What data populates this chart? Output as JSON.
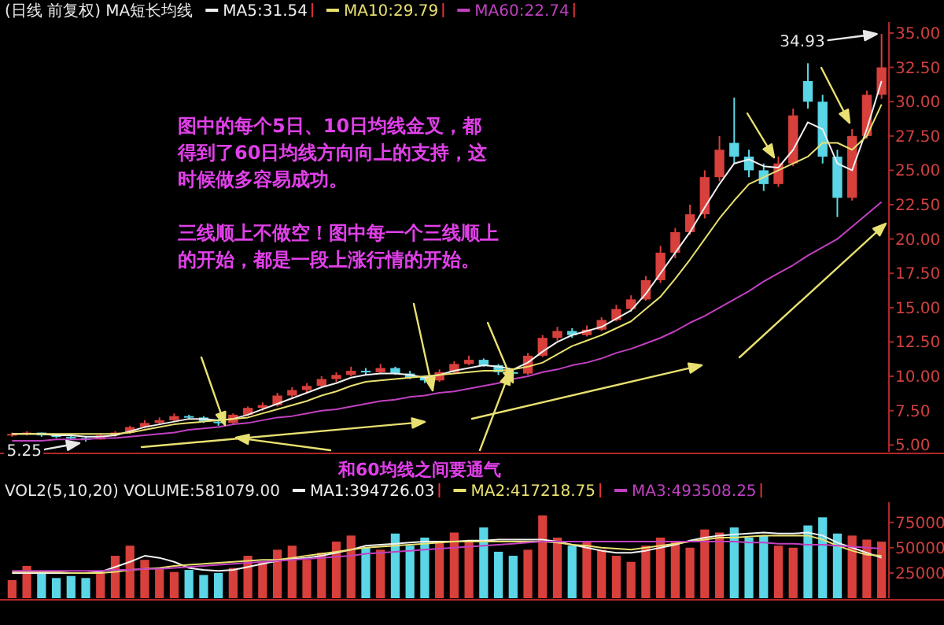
{
  "chart_data": [
    {
      "type": "candlestick",
      "title": "(日线 前复权) MA短长均线",
      "categories": [
        null,
        null,
        null,
        null,
        null,
        null,
        null,
        null,
        null,
        null,
        null,
        null,
        null,
        null,
        null,
        null,
        null,
        null,
        null,
        null,
        null,
        null,
        null,
        null,
        null,
        null,
        null,
        null,
        null,
        null,
        null,
        null,
        null,
        null,
        null,
        null,
        null,
        null,
        null,
        null,
        null,
        null,
        null,
        null,
        null,
        null,
        null,
        null,
        null,
        null,
        null,
        null,
        null,
        null,
        null,
        null,
        null,
        null,
        null,
        null
      ],
      "ohlc": [
        [
          5.7,
          5.9,
          5.6,
          5.8
        ],
        [
          5.8,
          6.0,
          5.7,
          5.9
        ],
        [
          5.9,
          5.9,
          5.6,
          5.7
        ],
        [
          5.7,
          5.8,
          5.5,
          5.6
        ],
        [
          5.6,
          5.7,
          5.4,
          5.5
        ],
        [
          5.5,
          5.6,
          5.25,
          5.4
        ],
        [
          5.4,
          5.8,
          5.4,
          5.7
        ],
        [
          5.7,
          6.0,
          5.6,
          5.9
        ],
        [
          5.9,
          6.4,
          5.8,
          6.3
        ],
        [
          6.3,
          6.8,
          6.2,
          6.6
        ],
        [
          6.6,
          7.0,
          6.5,
          6.8
        ],
        [
          6.8,
          7.3,
          6.7,
          7.1
        ],
        [
          7.1,
          7.2,
          6.9,
          7.0
        ],
        [
          7.0,
          7.1,
          6.6,
          6.7
        ],
        [
          6.7,
          6.9,
          6.4,
          6.6
        ],
        [
          6.6,
          7.3,
          6.5,
          7.2
        ],
        [
          7.2,
          7.8,
          7.1,
          7.7
        ],
        [
          7.7,
          8.1,
          7.5,
          7.9
        ],
        [
          7.9,
          8.8,
          7.8,
          8.6
        ],
        [
          8.6,
          9.2,
          8.4,
          9.0
        ],
        [
          9.0,
          9.5,
          8.8,
          9.3
        ],
        [
          9.3,
          10.0,
          9.2,
          9.8
        ],
        [
          9.8,
          10.3,
          9.6,
          10.1
        ],
        [
          10.1,
          10.7,
          10.0,
          10.4
        ],
        [
          10.4,
          10.6,
          10.1,
          10.3
        ],
        [
          10.3,
          10.9,
          10.2,
          10.6
        ],
        [
          10.6,
          10.7,
          10.1,
          10.2
        ],
        [
          10.2,
          10.4,
          9.8,
          9.9
        ],
        [
          9.9,
          10.0,
          9.5,
          9.7
        ],
        [
          9.7,
          10.5,
          9.6,
          10.3
        ],
        [
          10.3,
          11.1,
          10.2,
          10.9
        ],
        [
          10.9,
          11.5,
          10.8,
          11.2
        ],
        [
          11.2,
          11.3,
          10.7,
          10.8
        ],
        [
          10.8,
          10.9,
          10.1,
          10.3
        ],
        [
          10.3,
          10.5,
          10.0,
          10.2
        ],
        [
          10.2,
          11.7,
          10.1,
          11.5
        ],
        [
          11.5,
          13.0,
          11.4,
          12.8
        ],
        [
          12.8,
          13.6,
          12.6,
          13.3
        ],
        [
          13.3,
          13.5,
          12.8,
          13.0
        ],
        [
          13.0,
          13.7,
          12.9,
          13.4
        ],
        [
          13.4,
          14.3,
          13.3,
          14.1
        ],
        [
          14.1,
          15.2,
          14.0,
          14.9
        ],
        [
          14.9,
          15.9,
          14.7,
          15.6
        ],
        [
          15.6,
          17.3,
          15.5,
          17.0
        ],
        [
          17.0,
          19.5,
          16.8,
          19.0
        ],
        [
          19.0,
          20.8,
          18.6,
          20.5
        ],
        [
          20.5,
          22.5,
          20.3,
          21.8
        ],
        [
          21.8,
          25.0,
          21.5,
          24.5
        ],
        [
          24.5,
          27.5,
          24.2,
          26.5
        ],
        [
          27.0,
          30.3,
          25.5,
          26.0
        ],
        [
          26.0,
          26.5,
          24.5,
          25.0
        ],
        [
          25.0,
          25.5,
          23.5,
          24.0
        ],
        [
          24.0,
          26.0,
          23.8,
          25.5
        ],
        [
          25.5,
          29.5,
          25.3,
          29.0
        ],
        [
          31.5,
          32.8,
          29.5,
          30.0
        ],
        [
          30.0,
          30.5,
          25.5,
          26.0
        ],
        [
          26.0,
          26.5,
          21.6,
          23.0
        ],
        [
          23.0,
          28.0,
          22.8,
          27.5
        ],
        [
          27.5,
          30.8,
          27.3,
          30.5
        ],
        [
          30.5,
          34.93,
          30.2,
          32.5
        ]
      ],
      "colors": [
        "#d8403c",
        "#d8403c",
        "#5ad6e6",
        "#5ad6e6",
        "#5ad6e6",
        "#5ad6e6",
        "#d8403c",
        "#d8403c",
        "#d8403c",
        "#d8403c",
        "#d8403c",
        "#d8403c",
        "#5ad6e6",
        "#5ad6e6",
        "#5ad6e6",
        "#d8403c",
        "#d8403c",
        "#d8403c",
        "#d8403c",
        "#d8403c",
        "#d8403c",
        "#d8403c",
        "#d8403c",
        "#d8403c",
        "#5ad6e6",
        "#d8403c",
        "#5ad6e6",
        "#5ad6e6",
        "#5ad6e6",
        "#d8403c",
        "#d8403c",
        "#d8403c",
        "#5ad6e6",
        "#5ad6e6",
        "#5ad6e6",
        "#d8403c",
        "#d8403c",
        "#d8403c",
        "#5ad6e6",
        "#d8403c",
        "#d8403c",
        "#d8403c",
        "#d8403c",
        "#d8403c",
        "#d8403c",
        "#d8403c",
        "#d8403c",
        "#d8403c",
        "#d8403c",
        "#5ad6e6",
        "#5ad6e6",
        "#5ad6e6",
        "#d8403c",
        "#d8403c",
        "#5ad6e6",
        "#5ad6e6",
        "#5ad6e6",
        "#d8403c",
        "#d8403c",
        "#d8403c"
      ],
      "series": [
        {
          "type": "line",
          "name": "MA5:31.54",
          "color": "#f0f0f0",
          "values": [
            5.8,
            5.8,
            5.8,
            5.7,
            5.7,
            5.6,
            5.6,
            5.7,
            6.0,
            6.3,
            6.5,
            6.7,
            6.9,
            6.9,
            6.8,
            6.9,
            7.2,
            7.6,
            8.0,
            8.4,
            8.8,
            9.2,
            9.5,
            9.9,
            10.1,
            10.2,
            10.2,
            10.1,
            9.9,
            10.1,
            10.4,
            10.6,
            10.8,
            10.7,
            10.5,
            11.0,
            11.8,
            12.5,
            13.0,
            13.3,
            13.6,
            14.2,
            14.8,
            16.0,
            17.5,
            19.0,
            20.5,
            22.3,
            24.0,
            25.5,
            25.8,
            25.3,
            25.2,
            26.5,
            28.5,
            28.0,
            25.5,
            25.0,
            28.0,
            31.5
          ]
        },
        {
          "type": "line",
          "name": "MA10:29.79",
          "color": "#e8e070",
          "values": [
            5.8,
            5.8,
            5.8,
            5.8,
            5.8,
            5.8,
            5.8,
            5.8,
            5.9,
            6.1,
            6.3,
            6.5,
            6.6,
            6.7,
            6.8,
            6.9,
            7.0,
            7.3,
            7.6,
            7.9,
            8.2,
            8.6,
            8.9,
            9.3,
            9.6,
            9.7,
            9.8,
            9.9,
            10.0,
            10.1,
            10.2,
            10.3,
            10.4,
            10.4,
            10.5,
            10.7,
            11.0,
            11.6,
            12.2,
            12.6,
            13.0,
            13.5,
            14.0,
            14.9,
            15.8,
            17.1,
            18.5,
            20.0,
            21.5,
            22.8,
            24.0,
            24.5,
            25.0,
            25.5,
            26.0,
            27.0,
            27.0,
            26.5,
            27.5,
            29.8
          ]
        },
        {
          "type": "line",
          "name": "MA60:22.74",
          "color": "#c040c0",
          "values": [
            5.3,
            5.3,
            5.3,
            5.4,
            5.4,
            5.4,
            5.5,
            5.5,
            5.6,
            5.7,
            5.8,
            5.9,
            6.1,
            6.2,
            6.3,
            6.5,
            6.6,
            6.8,
            7.0,
            7.1,
            7.3,
            7.5,
            7.6,
            7.8,
            8.0,
            8.2,
            8.3,
            8.5,
            8.6,
            8.8,
            8.9,
            9.1,
            9.3,
            9.5,
            9.8,
            10.0,
            10.3,
            10.5,
            10.8,
            11.0,
            11.3,
            11.7,
            12.0,
            12.4,
            12.8,
            13.3,
            13.9,
            14.4,
            15.0,
            15.6,
            16.2,
            16.9,
            17.5,
            18.1,
            18.8,
            19.4,
            20.0,
            20.9,
            21.8,
            22.7
          ]
        }
      ],
      "ylim": [
        4.5,
        35.8
      ],
      "yticks": [
        {
          "value": 5,
          "label": "5.00"
        },
        {
          "value": 7.5,
          "label": "7.50"
        },
        {
          "value": 10,
          "label": "10.00"
        },
        {
          "value": 12.5,
          "label": "12.50"
        },
        {
          "value": 15,
          "label": "15.00"
        },
        {
          "value": 17.5,
          "label": "17.50"
        },
        {
          "value": 20,
          "label": "20.00"
        },
        {
          "value": 22.5,
          "label": "22.50"
        },
        {
          "value": 25,
          "label": "25.00"
        },
        {
          "value": 27.5,
          "label": "27.50"
        },
        {
          "value": 30,
          "label": "30.00"
        },
        {
          "value": 32.5,
          "label": "32.50"
        },
        {
          "value": 35,
          "label": "35.00"
        }
      ],
      "tick_labels": "y",
      "legend": "top left",
      "annotations": [
        "图中的每个5日、10日均线金叉，都得到了60日均线方向向上的支持，这时候做多容易成功。",
        "三线顺上不做空！图中每一个三线顺上的开始，都是一段上涨行情的开始。",
        "和60均线之间要通气",
        "5.25",
        "34.93"
      ]
    },
    {
      "type": "bar",
      "title": "VOL2(5,10,20) VOLUME:581079.00",
      "categories": [
        null,
        null,
        null,
        null,
        null,
        null,
        null,
        null,
        null,
        null,
        null,
        null,
        null,
        null,
        null,
        null,
        null,
        null,
        null,
        null,
        null,
        null,
        null,
        null,
        null,
        null,
        null,
        null,
        null,
        null,
        null,
        null,
        null,
        null,
        null,
        null,
        null,
        null,
        null,
        null,
        null,
        null,
        null,
        null,
        null,
        null,
        null,
        null,
        null,
        null,
        null,
        null,
        null,
        null,
        null,
        null,
        null,
        null,
        null,
        null
      ],
      "series": [
        {
          "type": "bar",
          "values": [
            18000,
            32000,
            25000,
            20000,
            22000,
            20000,
            26000,
            42000,
            52000,
            38000,
            30000,
            26000,
            28000,
            23000,
            25000,
            30000,
            42000,
            36000,
            48000,
            52000,
            38000,
            45000,
            56000,
            62000,
            50000,
            48000,
            64000,
            52000,
            60000,
            56000,
            65000,
            56000,
            70000,
            46000,
            42000,
            48000,
            82000,
            60000,
            52000,
            56000,
            48000,
            42000,
            36000,
            52000,
            60000,
            56000,
            50000,
            68000,
            65000,
            70000,
            60000,
            62000,
            52000,
            50000,
            72000,
            80000,
            64000,
            62000,
            58000,
            56000
          ],
          "colors": [
            "#d8403c",
            "#d8403c",
            "#5ad6e6",
            "#5ad6e6",
            "#5ad6e6",
            "#5ad6e6",
            "#d8403c",
            "#d8403c",
            "#d8403c",
            "#d8403c",
            "#d8403c",
            "#d8403c",
            "#5ad6e6",
            "#5ad6e6",
            "#5ad6e6",
            "#d8403c",
            "#d8403c",
            "#d8403c",
            "#d8403c",
            "#d8403c",
            "#d8403c",
            "#d8403c",
            "#d8403c",
            "#d8403c",
            "#5ad6e6",
            "#d8403c",
            "#5ad6e6",
            "#5ad6e6",
            "#5ad6e6",
            "#d8403c",
            "#d8403c",
            "#d8403c",
            "#5ad6e6",
            "#5ad6e6",
            "#5ad6e6",
            "#d8403c",
            "#d8403c",
            "#d8403c",
            "#5ad6e6",
            "#d8403c",
            "#d8403c",
            "#d8403c",
            "#d8403c",
            "#d8403c",
            "#d8403c",
            "#d8403c",
            "#d8403c",
            "#d8403c",
            "#d8403c",
            "#5ad6e6",
            "#5ad6e6",
            "#5ad6e6",
            "#d8403c",
            "#d8403c",
            "#5ad6e6",
            "#5ad6e6",
            "#5ad6e6",
            "#d8403c",
            "#d8403c",
            "#d8403c"
          ]
        },
        {
          "type": "line",
          "name": "MA1:394726.03",
          "color": "#f0f0f0",
          "values": [
            25000,
            25000,
            25000,
            25000,
            25000,
            25000,
            26000,
            31000,
            36000,
            42000,
            40000,
            36000,
            30000,
            28000,
            27000,
            28000,
            31000,
            34000,
            37000,
            39000,
            40000,
            42000,
            45000,
            48000,
            52000,
            53000,
            54000,
            55000,
            56000,
            56000,
            56000,
            57000,
            57000,
            58000,
            58000,
            58000,
            58000,
            56000,
            53000,
            50000,
            47000,
            45000,
            45000,
            47000,
            50000,
            53000,
            57000,
            60000,
            62000,
            63000,
            64000,
            65000,
            64000,
            64000,
            65000,
            62000,
            55000,
            50000,
            45000,
            40000
          ]
        },
        {
          "type": "line",
          "name": "MA2:417218.75",
          "color": "#e8e070",
          "values": [
            26000,
            26000,
            26000,
            26000,
            25000,
            25000,
            25000,
            26000,
            28000,
            29000,
            30000,
            32000,
            33000,
            34000,
            35000,
            36000,
            37000,
            38000,
            38000,
            40000,
            42000,
            44000,
            46000,
            48000,
            50000,
            51000,
            52000,
            53000,
            54000,
            55000,
            56000,
            56000,
            56000,
            56000,
            56000,
            56000,
            56000,
            55000,
            53000,
            52000,
            50000,
            49000,
            48000,
            50000,
            52000,
            54000,
            56000,
            58000,
            60000,
            60000,
            61000,
            62000,
            62000,
            62000,
            62000,
            58000,
            52000,
            47000,
            43000,
            42000
          ]
        },
        {
          "type": "line",
          "name": "MA3:493508.25",
          "color": "#c040c0",
          "values": [
            27000,
            27000,
            27000,
            27000,
            27000,
            27000,
            27000,
            28000,
            28000,
            29000,
            29000,
            30000,
            31000,
            32000,
            33000,
            34000,
            35000,
            36000,
            37000,
            38000,
            39000,
            40000,
            41000,
            42000,
            44000,
            45000,
            46000,
            47000,
            48000,
            49000,
            50000,
            51000,
            52000,
            53000,
            54000,
            55000,
            56000,
            56000,
            56000,
            56000,
            56000,
            56000,
            56000,
            56000,
            56000,
            56000,
            56000,
            56000,
            56000,
            56000,
            55000,
            55000,
            54000,
            54000,
            53000,
            53000,
            52000,
            51000,
            50000,
            49000
          ]
        }
      ],
      "ylim": [
        0,
        95000
      ],
      "yticks": [
        25000,
        50000,
        75000
      ],
      "legend": "top",
      "tick_labels": "y"
    }
  ]
}
